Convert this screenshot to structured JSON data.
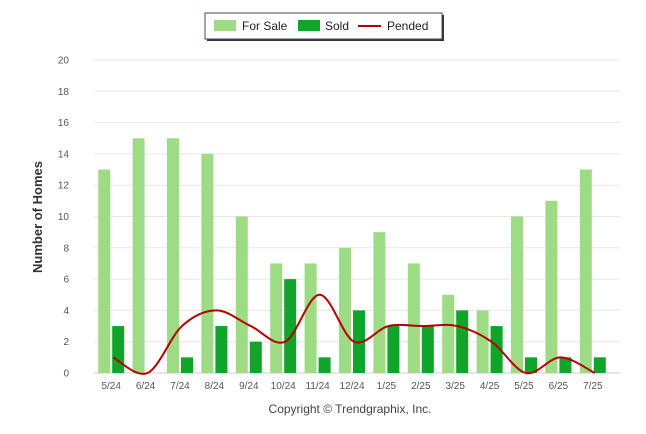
{
  "colors": {
    "for_sale": "#9ddb84",
    "sold": "#11a42a",
    "pended": "#b30000",
    "grid": "#e6e6e6",
    "axis": "#cccccc"
  },
  "legend": {
    "for_sale_label": "For Sale",
    "sold_label": "Sold",
    "pended_label": "Pended"
  },
  "footer": {
    "copyright": "Copyright © Trendgraphix, Inc."
  },
  "chart_data": {
    "type": "bar",
    "title": "",
    "xlabel": "",
    "ylabel": "Number of Homes",
    "ylim": [
      0,
      20
    ],
    "yticks": [
      0,
      2,
      4,
      6,
      8,
      10,
      12,
      14,
      16,
      18,
      20
    ],
    "grid": true,
    "legend_position": "top-center",
    "categories": [
      "5/24",
      "6/24",
      "7/24",
      "8/24",
      "9/24",
      "10/24",
      "11/24",
      "12/24",
      "1/25",
      "2/25",
      "3/25",
      "4/25",
      "5/25",
      "6/25",
      "7/25"
    ],
    "series": [
      {
        "name": "For Sale",
        "type": "bar",
        "values": [
          13,
          15,
          15,
          14,
          10,
          7,
          7,
          8,
          9,
          7,
          5,
          4,
          10,
          11,
          13
        ]
      },
      {
        "name": "Sold",
        "type": "bar",
        "values": [
          3,
          0,
          1,
          3,
          2,
          6,
          1,
          4,
          3,
          3,
          4,
          3,
          1,
          1,
          1
        ]
      },
      {
        "name": "Pended",
        "type": "line",
        "values": [
          1,
          0,
          3,
          4,
          3,
          2,
          5,
          2,
          3,
          3,
          3,
          2,
          0,
          1,
          0
        ]
      }
    ]
  }
}
